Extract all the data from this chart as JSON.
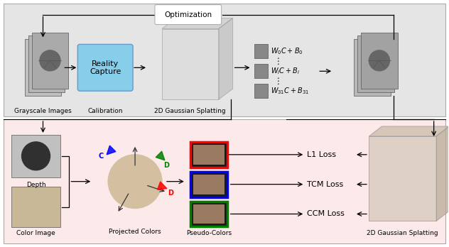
{
  "bg_top": "#e5e5e5",
  "bg_bottom": "#fceaea",
  "title": "Optimization",
  "font_main": 7.5,
  "grayscale_label": "Grayscale Images",
  "calibration_label": "Calibration",
  "gaussian_label_top": "2D Gaussian Splatting",
  "depth_label": "Depth",
  "color_image_label": "Color Image",
  "projected_label": "Projected Colors",
  "pseudo_label": "Pseudo-Colors",
  "gaussian_label_bot": "2D Gaussian Splatting",
  "l1_loss": "L1 Loss",
  "tcm_loss": "TCM Loss",
  "ccm_loss": "CCM Loss",
  "formula_0": "$W_0C + B_0$",
  "formula_i": "$W_iC + B_i$",
  "formula_31": "$W_{31}C + B_{31}$",
  "dots": "$\\vdots$",
  "rc_color": "#87ceeb",
  "rc_label": "Reality\nCapture"
}
